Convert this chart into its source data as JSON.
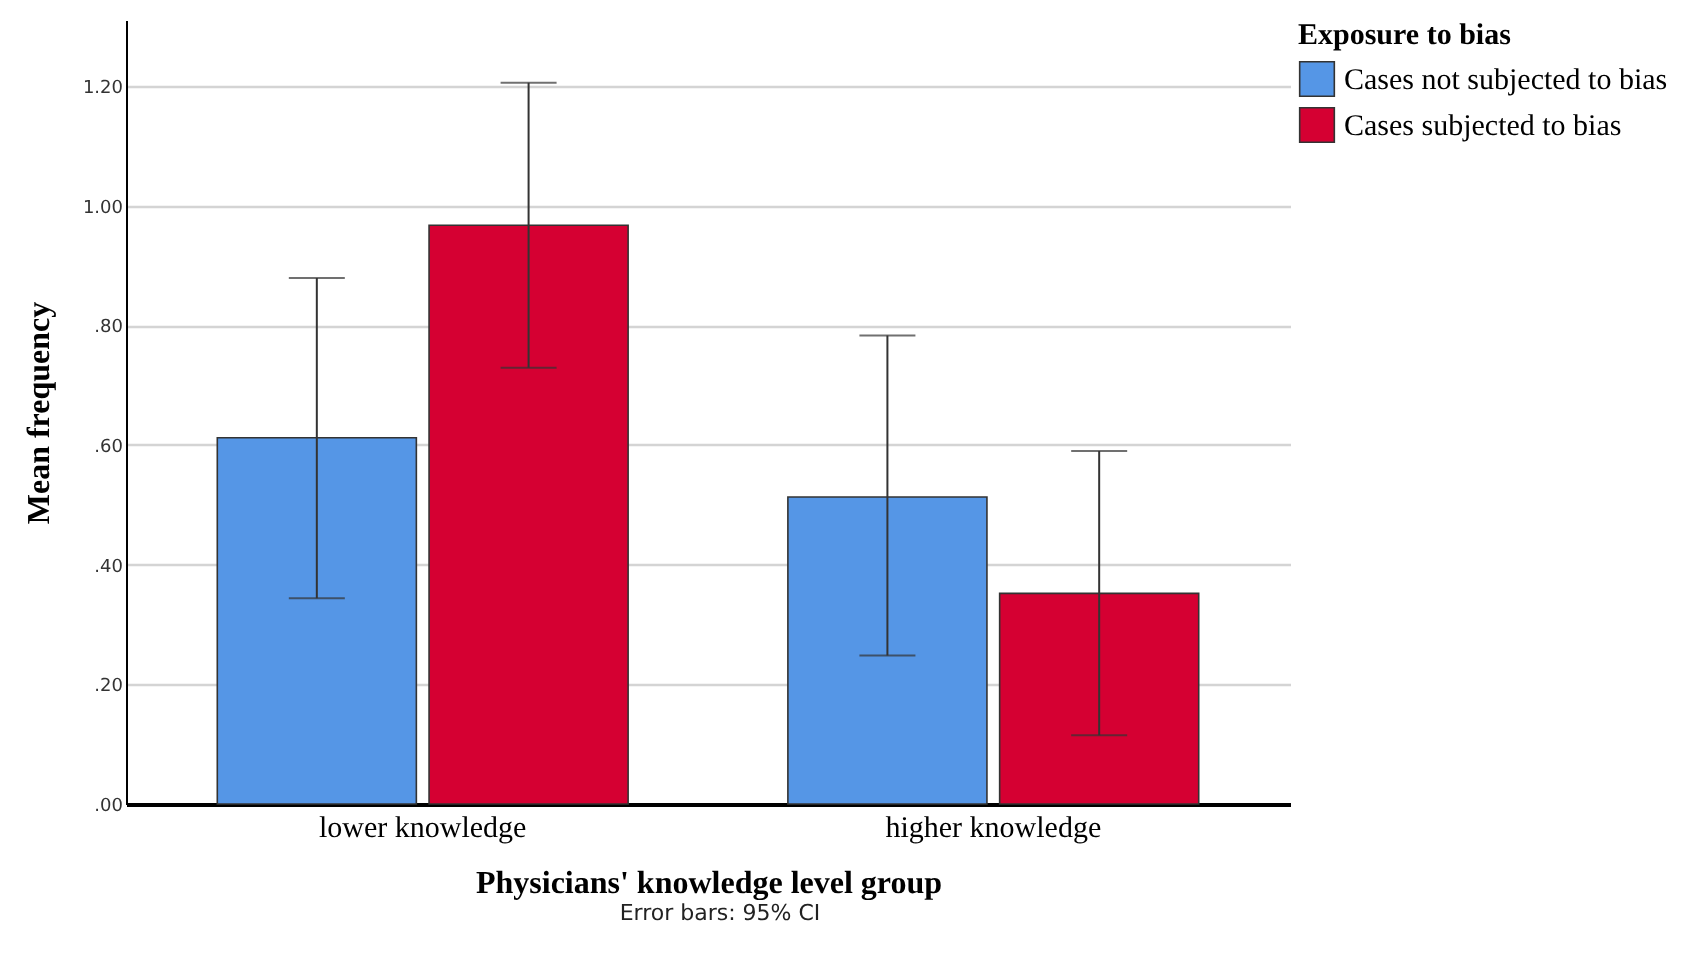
{
  "chart_data": {
    "type": "bar",
    "xlabel": "Physicians' knowledge level group",
    "ylabel": "Mean frequency",
    "legend_title": "Exposure to bias",
    "categories": [
      "lower knowledge",
      "higher knowledge"
    ],
    "series": [
      {
        "name": "Cases not subjected to bias",
        "color": "#5596e6",
        "values": [
          0.612,
          0.513
        ],
        "errors": [
          [
            0.344,
            0.879
          ],
          [
            0.248,
            0.783
          ]
        ]
      },
      {
        "name": "Cases subjected to bias",
        "color": "#d50032",
        "values": [
          0.967,
          0.352
        ],
        "errors": [
          [
            0.729,
            1.205
          ],
          [
            0.115,
            0.59
          ]
        ]
      }
    ],
    "ylim": [
      0,
      1.31
    ],
    "yticks": [
      {
        "value": 0,
        "label": ".00"
      },
      {
        "value": 0.2,
        "label": ".20"
      },
      {
        "value": 0.4,
        "label": ".40"
      },
      {
        "value": 0.6,
        "label": ".60"
      },
      {
        "value": 0.8,
        "label": ".80"
      },
      {
        "value": 1,
        "label": "1.00"
      },
      {
        "value": 1.2,
        "label": "1.20"
      }
    ],
    "grid": "y",
    "legend": "top right",
    "annotations": [
      "Error bars: 95% CI"
    ]
  }
}
